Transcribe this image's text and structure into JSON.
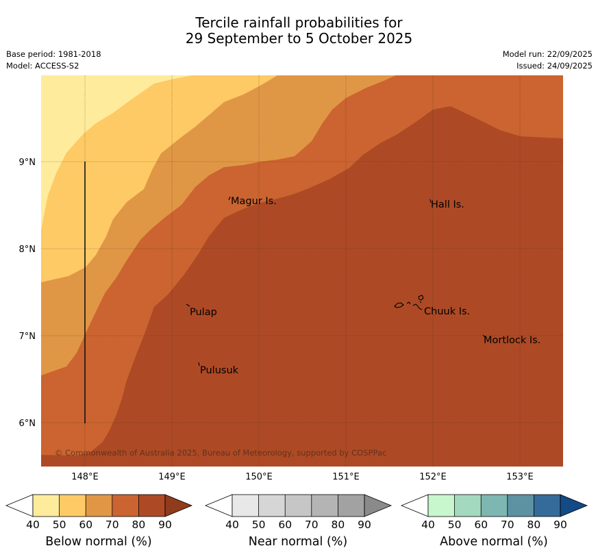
{
  "title": {
    "line1": "Tercile rainfall probabilities for",
    "line2": "29 September to 5 October 2025"
  },
  "info_left": {
    "base_period": "Base period: 1981-2018",
    "model": "Model: ACCESS-S2"
  },
  "info_right": {
    "model_run": "Model run: 22/09/2025",
    "issued": "Issued: 24/09/2025"
  },
  "map": {
    "lon_ticks": [
      "148°E",
      "149°E",
      "150°E",
      "151°E",
      "152°E",
      "153°E"
    ],
    "lat_ticks": [
      "9°N",
      "8°N",
      "7°N",
      "6°N"
    ],
    "place_labels": {
      "magur": "Magur Is.",
      "hall": "Hall Is.",
      "pulap": "Pulap",
      "chuuk": "Chuuk Is.",
      "mortlock": "Mortlock Is.",
      "pulusuk": "Pulusuk"
    },
    "copyright": "© Commonwealth of Australia 2025, Bureau of Meteorology, supported by COSPPac"
  },
  "colorbars": {
    "below": {
      "label": "Below normal (%)",
      "ticks": [
        "40",
        "50",
        "60",
        "70",
        "80",
        "90"
      ],
      "colors": [
        "#ffffff",
        "#ffeb9c",
        "#fdca65",
        "#e09745",
        "#cb6430",
        "#ad4a25",
        "#8f3b1c"
      ]
    },
    "near": {
      "label": "Near normal (%)",
      "ticks": [
        "40",
        "50",
        "60",
        "70",
        "80",
        "90"
      ],
      "colors": [
        "#ffffff",
        "#e8e8e8",
        "#d6d6d6",
        "#c6c6c6",
        "#b4b4b4",
        "#a2a2a2",
        "#8a8a8a"
      ]
    },
    "above": {
      "label": "Above normal (%)",
      "ticks": [
        "40",
        "50",
        "60",
        "70",
        "80",
        "90"
      ],
      "colors": [
        "#ffffff",
        "#c8f6cd",
        "#a3d9bf",
        "#7eb6b1",
        "#5c92a2",
        "#346b9b",
        "#124b86"
      ]
    }
  },
  "fill_colors": {
    "below_40_50": "#ffeb9c",
    "below_50_60": "#fdca65",
    "below_60_70": "#e09745",
    "below_70_80": "#cb6430",
    "below_80_90": "#ad4a25"
  }
}
